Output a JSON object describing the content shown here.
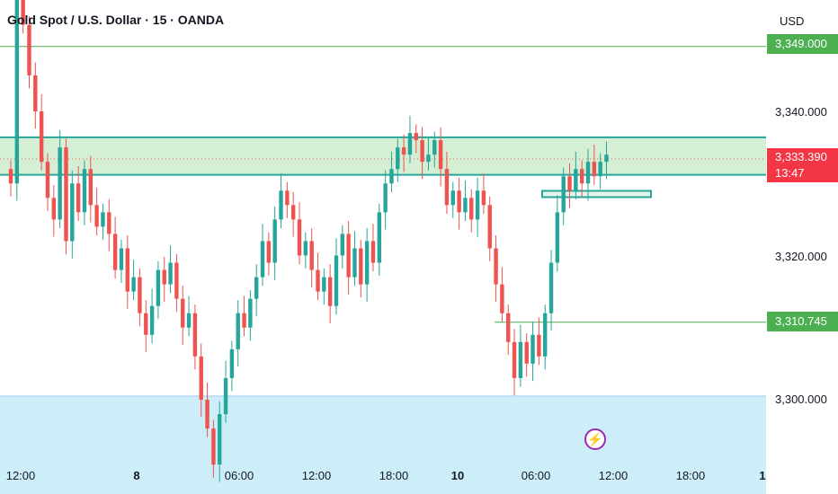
{
  "header": {
    "title": "Gold Spot / U.S. Dollar · 15 · OANDA",
    "currency": "USD"
  },
  "price_axis": {
    "ticks": [
      "3,340.000",
      "3,320.000",
      "3,300.000"
    ],
    "top_badge_label": "3,349.000",
    "current_price_label": "3,333.390",
    "countdown_label": "13:47",
    "level_label": "3,310.745"
  },
  "time_axis": {
    "ticks": [
      "12:00",
      "8",
      "06:00",
      "12:00",
      "18:00",
      "10",
      "06:00",
      "12:00",
      "18:00",
      "1"
    ]
  },
  "colors": {
    "up": "#26a69a",
    "down": "#ef5350",
    "resistance_zone": "#d4efd3",
    "zone_border": "#26a69a",
    "support_zone": "#cdeef8",
    "level_line": "#4caf50",
    "price_badge": "#f23645",
    "event_icon": "#9c27b0"
  },
  "event_marker": {
    "icon": "lightning-bolt-icon",
    "glyph": "⚡"
  },
  "chart_data": {
    "type": "candlestick",
    "symbol": "XAUUSD",
    "interval": "15",
    "ylim": [
      3285,
      3355
    ],
    "y_ticks": [
      3300,
      3320,
      3340
    ],
    "horizontal_lines": [
      3349.0,
      3310.745
    ],
    "current_price": 3333.39,
    "zones": [
      {
        "type": "resistance",
        "from": 3331.2,
        "to": 3336.4
      },
      {
        "type": "support",
        "from": 3286.7,
        "to": 3300.5
      }
    ],
    "rectangle": {
      "from": 3327.7,
      "to": 3328.6,
      "x_start": "10 07:15",
      "x_end": "10 14:45"
    },
    "x_ticks": [
      "7 12:00",
      "8 00:00",
      "8 06:00",
      "8 12:00",
      "8 18:00",
      "10 00:00",
      "10 06:00",
      "10 12:00",
      "10 18:00",
      "11 00:00"
    ],
    "candle_closes": [
      3330,
      3360,
      3352,
      3345,
      3340,
      3333,
      3328,
      3325,
      3335,
      3322,
      3330,
      3326,
      3332,
      3327,
      3324,
      3326,
      3323,
      3318,
      3321,
      3315,
      3317,
      3312,
      3309,
      3313,
      3318,
      3316,
      3319,
      3314,
      3310,
      3312,
      3306,
      3300,
      3296,
      3291,
      3298,
      3303,
      3307,
      3312,
      3310,
      3314,
      3317,
      3322,
      3319,
      3325,
      3329,
      3327,
      3325,
      3320,
      3322,
      3318,
      3315,
      3317,
      3313,
      3320,
      3323,
      3317,
      3321,
      3316,
      3322,
      3319,
      3326,
      3330,
      3332,
      3335,
      3334,
      3337,
      3336,
      3333,
      3334,
      3336,
      3332,
      3327,
      3329,
      3326,
      3328,
      3325,
      3329,
      3327,
      3321,
      3316,
      3312,
      3308,
      3303,
      3308,
      3305,
      3309,
      3306,
      3312,
      3319,
      3326,
      3331,
      3329,
      3332,
      3330,
      3333,
      3331,
      3333,
      3334
    ]
  }
}
